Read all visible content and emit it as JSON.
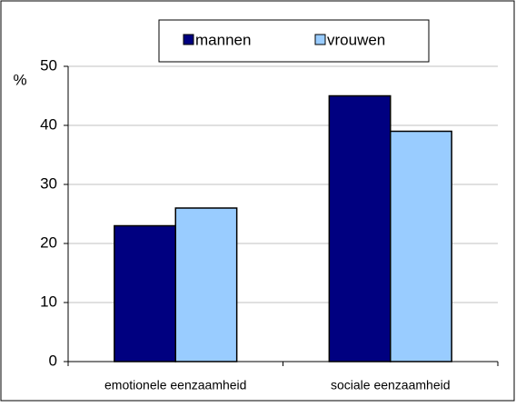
{
  "chart_data": {
    "type": "bar",
    "y_label": "%",
    "categories": [
      "emotionele eenzaamheid",
      "sociale eenzaamheid"
    ],
    "series": [
      {
        "name": "mannen",
        "color": "#000080",
        "values": [
          23,
          45
        ]
      },
      {
        "name": "vrouwen",
        "color": "#99ccff",
        "values": [
          26,
          39
        ]
      }
    ],
    "ylim": [
      0,
      50
    ],
    "yticks": [
      0,
      10,
      20,
      30,
      40,
      50
    ],
    "grid": true,
    "legend": "top"
  }
}
